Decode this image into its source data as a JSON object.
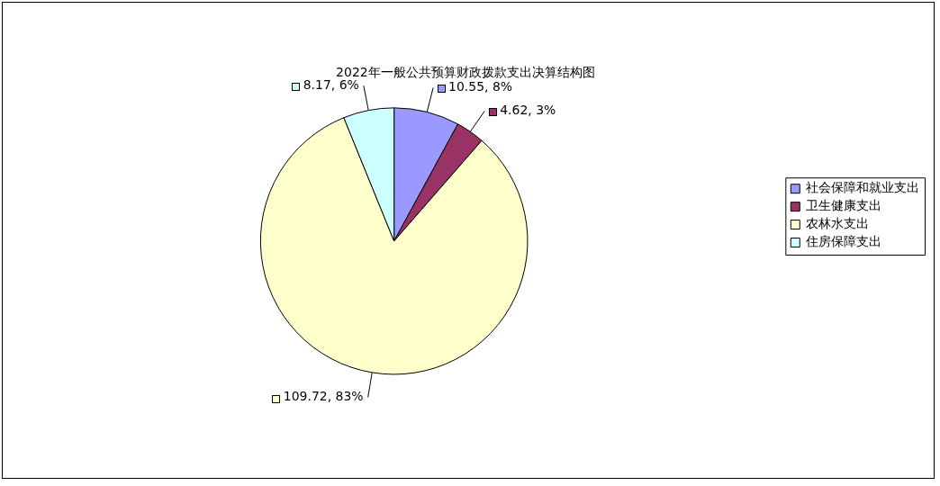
{
  "chart_data": {
    "type": "pie",
    "title": "2022年一般公共预算财政拨款支出决算结构图",
    "categories": [
      "社会保障和就业支出",
      "卫生健康支出",
      "农林水支出",
      "住房保障支出"
    ],
    "values": [
      10.55,
      4.62,
      109.72,
      8.17
    ],
    "colors": [
      "#9999ff",
      "#993366",
      "#ffffcc",
      "#ccffff"
    ],
    "value_labels": [
      "10.55, 8%",
      "4.62, 3%",
      "109.72, 83%",
      "8.17, 6%"
    ],
    "legend": "right"
  }
}
